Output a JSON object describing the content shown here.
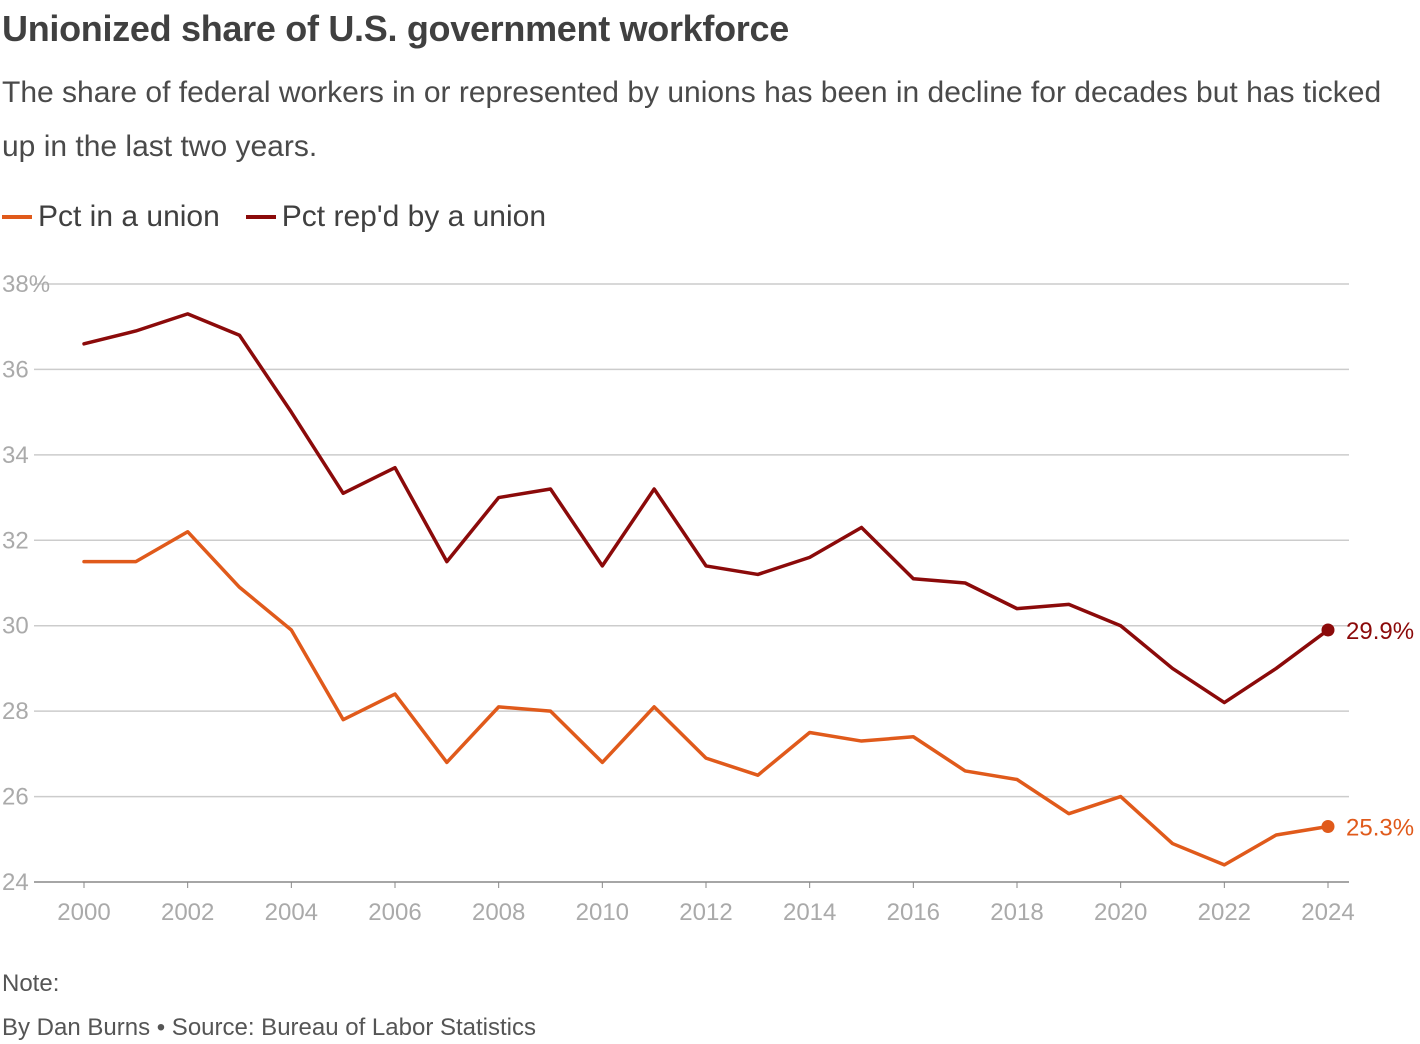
{
  "chart_data": {
    "type": "line",
    "title": "Unionized share of U.S. government workforce",
    "subtitle": "The share of federal workers in or represented by unions has been in decline for decades but has ticked up in the last two years.",
    "x": [
      2000,
      2001,
      2002,
      2003,
      2004,
      2005,
      2006,
      2007,
      2008,
      2009,
      2010,
      2011,
      2012,
      2013,
      2014,
      2015,
      2016,
      2017,
      2018,
      2019,
      2020,
      2021,
      2022,
      2023,
      2024
    ],
    "series": [
      {
        "name": "Pct in a union",
        "color": "#e05a1b",
        "values": [
          31.5,
          31.5,
          32.2,
          30.9,
          29.9,
          27.8,
          28.4,
          26.8,
          28.1,
          28.0,
          26.8,
          28.1,
          26.9,
          26.5,
          27.5,
          27.3,
          27.4,
          26.6,
          26.4,
          25.6,
          26.0,
          24.9,
          24.4,
          25.1,
          25.3
        ],
        "end_label": "25.3%"
      },
      {
        "name": "Pct rep'd by a union",
        "color": "#8b0a0a",
        "values": [
          36.6,
          36.9,
          37.3,
          36.8,
          35.0,
          33.1,
          33.7,
          31.5,
          33.0,
          33.2,
          31.4,
          33.2,
          31.4,
          31.2,
          31.6,
          32.3,
          31.1,
          31.0,
          30.4,
          30.5,
          30.0,
          29.0,
          28.2,
          29.0,
          29.9
        ],
        "end_label": "29.9%"
      }
    ],
    "ylim": [
      24,
      38
    ],
    "yticks": [
      24,
      26,
      28,
      30,
      32,
      34,
      36,
      38
    ],
    "ytick_labels": [
      "24",
      "26",
      "28",
      "30",
      "32",
      "34",
      "36",
      "38%"
    ],
    "xticks": [
      2000,
      2002,
      2004,
      2006,
      2008,
      2010,
      2012,
      2014,
      2016,
      2018,
      2020,
      2022,
      2024
    ],
    "xtick_labels": [
      "2000",
      "2002",
      "2004",
      "2006",
      "2008",
      "2010",
      "2012",
      "2014",
      "2016",
      "2018",
      "2020",
      "2022",
      "2024"
    ],
    "xlabel": "",
    "ylabel": "",
    "grid": true,
    "legend_position": "top-left"
  },
  "footer": {
    "note": "Note:",
    "byline": "By Dan Burns • Source: Bureau of Labor Statistics"
  }
}
